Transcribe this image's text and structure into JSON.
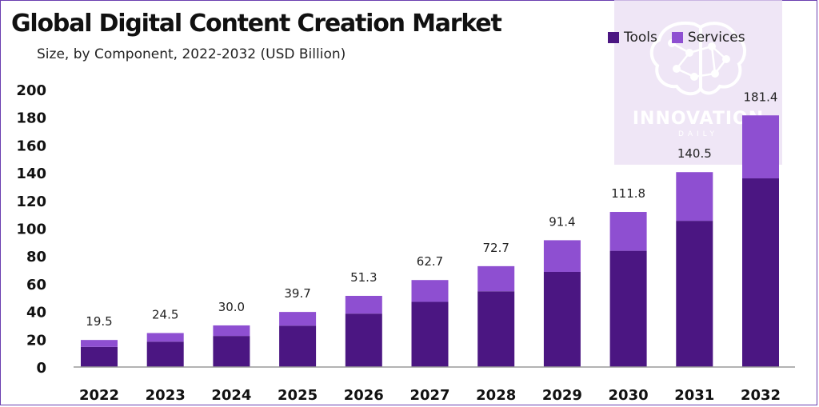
{
  "title": "Global Digital Content Creation Market",
  "subtitle": "Size, by Component, 2022-2032 (USD Billion)",
  "watermark": {
    "name": "INNOVATION",
    "sub": "DAILY"
  },
  "colors": {
    "tools": "#4b1682",
    "services": "#8e4fd1",
    "axis": "#111111",
    "label": "#222222"
  },
  "legend": [
    {
      "label": "Tools",
      "color": "#4b1682"
    },
    {
      "label": "Services",
      "color": "#8e4fd1"
    }
  ],
  "chart_data": {
    "type": "bar",
    "stacked": true,
    "categories": [
      "2022",
      "2023",
      "2024",
      "2025",
      "2026",
      "2027",
      "2028",
      "2029",
      "2030",
      "2031",
      "2032"
    ],
    "series": [
      {
        "name": "Tools",
        "values": [
          14.5,
          18.3,
          22.4,
          29.8,
          38.5,
          47.0,
          54.6,
          68.6,
          83.8,
          105.4,
          136.0
        ]
      },
      {
        "name": "Services",
        "values": [
          5.0,
          6.2,
          7.6,
          9.9,
          12.8,
          15.7,
          18.1,
          22.8,
          28.0,
          35.1,
          45.4
        ]
      }
    ],
    "totals": [
      19.5,
      24.5,
      30.0,
      39.7,
      51.3,
      62.7,
      72.7,
      91.4,
      111.8,
      140.5,
      181.4
    ],
    "total_labels": [
      "19.5",
      "24.5",
      "30.0",
      "39.7",
      "51.3",
      "62.7",
      "72.7",
      "91.4",
      "111.8",
      "140.5",
      "181.4"
    ],
    "yticks": [
      0,
      20,
      40,
      60,
      80,
      100,
      120,
      140,
      160,
      180,
      200
    ],
    "ylim": [
      0,
      200
    ],
    "legend_position": "top-right",
    "grid": false
  }
}
